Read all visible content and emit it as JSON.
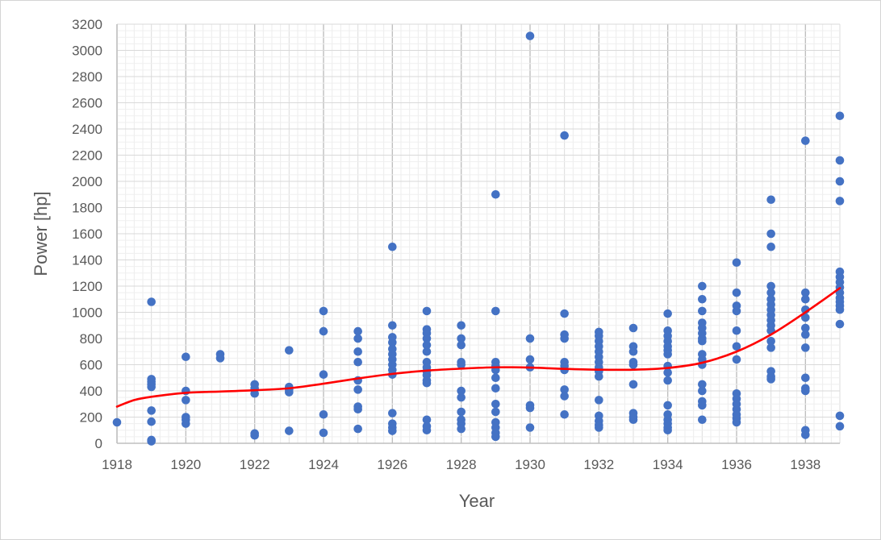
{
  "chart_data": {
    "type": "scatter",
    "title": "",
    "xlabel": "Year",
    "ylabel": "Power [hp]",
    "xlim": [
      1918,
      1939
    ],
    "ylim": [
      0,
      3200
    ],
    "x_ticks": [
      1918,
      1920,
      1922,
      1924,
      1926,
      1928,
      1930,
      1932,
      1934,
      1936,
      1938
    ],
    "y_ticks": [
      0,
      200,
      400,
      600,
      800,
      1000,
      1200,
      1400,
      1600,
      1800,
      2000,
      2200,
      2400,
      2600,
      2800,
      3000,
      3200
    ],
    "grid": true,
    "legend": "none",
    "colors": {
      "points": "#4472c4",
      "trend": "#ff0000",
      "grid": "#d9d9d9"
    },
    "series": [
      {
        "kind": "points",
        "points": [
          [
            1918,
            160
          ],
          [
            1919,
            1080
          ],
          [
            1919,
            490
          ],
          [
            1919,
            470
          ],
          [
            1919,
            450
          ],
          [
            1919,
            430
          ],
          [
            1919,
            250
          ],
          [
            1919,
            165
          ],
          [
            1919,
            25
          ],
          [
            1919,
            15
          ],
          [
            1920,
            660
          ],
          [
            1920,
            400
          ],
          [
            1920,
            330
          ],
          [
            1920,
            200
          ],
          [
            1920,
            180
          ],
          [
            1920,
            150
          ],
          [
            1921,
            680
          ],
          [
            1921,
            650
          ],
          [
            1922,
            450
          ],
          [
            1922,
            420
          ],
          [
            1922,
            380
          ],
          [
            1922,
            75
          ],
          [
            1922,
            60
          ],
          [
            1923,
            710
          ],
          [
            1923,
            430
          ],
          [
            1923,
            410
          ],
          [
            1923,
            390
          ],
          [
            1923,
            95
          ],
          [
            1924,
            1010
          ],
          [
            1924,
            855
          ],
          [
            1924,
            525
          ],
          [
            1924,
            220
          ],
          [
            1924,
            80
          ],
          [
            1925,
            855
          ],
          [
            1925,
            800
          ],
          [
            1925,
            700
          ],
          [
            1925,
            620
          ],
          [
            1925,
            480
          ],
          [
            1925,
            410
          ],
          [
            1925,
            280
          ],
          [
            1925,
            260
          ],
          [
            1925,
            110
          ],
          [
            1926,
            1500
          ],
          [
            1926,
            900
          ],
          [
            1926,
            810
          ],
          [
            1926,
            770
          ],
          [
            1926,
            720
          ],
          [
            1926,
            680
          ],
          [
            1926,
            640
          ],
          [
            1926,
            600
          ],
          [
            1926,
            560
          ],
          [
            1926,
            525
          ],
          [
            1926,
            230
          ],
          [
            1926,
            150
          ],
          [
            1926,
            120
          ],
          [
            1926,
            95
          ],
          [
            1927,
            1010
          ],
          [
            1927,
            870
          ],
          [
            1927,
            840
          ],
          [
            1927,
            800
          ],
          [
            1927,
            750
          ],
          [
            1927,
            700
          ],
          [
            1927,
            620
          ],
          [
            1927,
            580
          ],
          [
            1927,
            550
          ],
          [
            1927,
            520
          ],
          [
            1927,
            480
          ],
          [
            1927,
            460
          ],
          [
            1927,
            180
          ],
          [
            1927,
            130
          ],
          [
            1927,
            100
          ],
          [
            1928,
            900
          ],
          [
            1928,
            800
          ],
          [
            1928,
            750
          ],
          [
            1928,
            620
          ],
          [
            1928,
            600
          ],
          [
            1928,
            400
          ],
          [
            1928,
            350
          ],
          [
            1928,
            240
          ],
          [
            1928,
            180
          ],
          [
            1928,
            150
          ],
          [
            1928,
            110
          ],
          [
            1929,
            1900
          ],
          [
            1929,
            1010
          ],
          [
            1929,
            620
          ],
          [
            1929,
            590
          ],
          [
            1929,
            560
          ],
          [
            1929,
            500
          ],
          [
            1929,
            420
          ],
          [
            1929,
            300
          ],
          [
            1929,
            240
          ],
          [
            1929,
            160
          ],
          [
            1929,
            120
          ],
          [
            1929,
            80
          ],
          [
            1929,
            50
          ],
          [
            1930,
            3110
          ],
          [
            1930,
            800
          ],
          [
            1930,
            640
          ],
          [
            1930,
            580
          ],
          [
            1930,
            290
          ],
          [
            1930,
            270
          ],
          [
            1930,
            120
          ],
          [
            1931,
            2350
          ],
          [
            1931,
            990
          ],
          [
            1931,
            830
          ],
          [
            1931,
            800
          ],
          [
            1931,
            620
          ],
          [
            1931,
            590
          ],
          [
            1931,
            560
          ],
          [
            1931,
            410
          ],
          [
            1931,
            360
          ],
          [
            1931,
            220
          ],
          [
            1932,
            850
          ],
          [
            1932,
            820
          ],
          [
            1932,
            780
          ],
          [
            1932,
            740
          ],
          [
            1932,
            700
          ],
          [
            1932,
            660
          ],
          [
            1932,
            620
          ],
          [
            1932,
            580
          ],
          [
            1932,
            550
          ],
          [
            1932,
            510
          ],
          [
            1932,
            330
          ],
          [
            1932,
            210
          ],
          [
            1932,
            170
          ],
          [
            1932,
            140
          ],
          [
            1932,
            120
          ],
          [
            1933,
            880
          ],
          [
            1933,
            740
          ],
          [
            1933,
            700
          ],
          [
            1933,
            620
          ],
          [
            1933,
            600
          ],
          [
            1933,
            450
          ],
          [
            1933,
            230
          ],
          [
            1933,
            200
          ],
          [
            1933,
            180
          ],
          [
            1934,
            990
          ],
          [
            1934,
            860
          ],
          [
            1934,
            820
          ],
          [
            1934,
            780
          ],
          [
            1934,
            740
          ],
          [
            1934,
            710
          ],
          [
            1934,
            680
          ],
          [
            1934,
            590
          ],
          [
            1934,
            540
          ],
          [
            1934,
            480
          ],
          [
            1934,
            290
          ],
          [
            1934,
            220
          ],
          [
            1934,
            180
          ],
          [
            1934,
            150
          ],
          [
            1934,
            120
          ],
          [
            1934,
            100
          ],
          [
            1935,
            1200
          ],
          [
            1935,
            1100
          ],
          [
            1935,
            1010
          ],
          [
            1935,
            920
          ],
          [
            1935,
            880
          ],
          [
            1935,
            840
          ],
          [
            1935,
            800
          ],
          [
            1935,
            780
          ],
          [
            1935,
            680
          ],
          [
            1935,
            640
          ],
          [
            1935,
            600
          ],
          [
            1935,
            450
          ],
          [
            1935,
            400
          ],
          [
            1935,
            320
          ],
          [
            1935,
            290
          ],
          [
            1935,
            180
          ],
          [
            1936,
            1380
          ],
          [
            1936,
            1150
          ],
          [
            1936,
            1050
          ],
          [
            1936,
            1010
          ],
          [
            1936,
            860
          ],
          [
            1936,
            740
          ],
          [
            1936,
            640
          ],
          [
            1936,
            380
          ],
          [
            1936,
            340
          ],
          [
            1936,
            300
          ],
          [
            1936,
            260
          ],
          [
            1936,
            220
          ],
          [
            1936,
            190
          ],
          [
            1936,
            160
          ],
          [
            1937,
            1860
          ],
          [
            1937,
            1600
          ],
          [
            1937,
            1500
          ],
          [
            1937,
            1200
          ],
          [
            1937,
            1150
          ],
          [
            1937,
            1100
          ],
          [
            1937,
            1060
          ],
          [
            1937,
            1020
          ],
          [
            1937,
            980
          ],
          [
            1937,
            940
          ],
          [
            1937,
            900
          ],
          [
            1937,
            860
          ],
          [
            1937,
            780
          ],
          [
            1937,
            730
          ],
          [
            1937,
            550
          ],
          [
            1937,
            510
          ],
          [
            1937,
            490
          ],
          [
            1938,
            2310
          ],
          [
            1938,
            1150
          ],
          [
            1938,
            1100
          ],
          [
            1938,
            1020
          ],
          [
            1938,
            960
          ],
          [
            1938,
            880
          ],
          [
            1938,
            830
          ],
          [
            1938,
            730
          ],
          [
            1938,
            500
          ],
          [
            1938,
            420
          ],
          [
            1938,
            400
          ],
          [
            1938,
            100
          ],
          [
            1938,
            65
          ],
          [
            1939,
            2500
          ],
          [
            1939,
            2160
          ],
          [
            1939,
            2000
          ],
          [
            1939,
            1850
          ],
          [
            1939,
            1310
          ],
          [
            1939,
            1270
          ],
          [
            1939,
            1230
          ],
          [
            1939,
            1190
          ],
          [
            1939,
            1150
          ],
          [
            1939,
            1110
          ],
          [
            1939,
            1080
          ],
          [
            1939,
            1050
          ],
          [
            1939,
            1020
          ],
          [
            1939,
            910
          ],
          [
            1939,
            210
          ],
          [
            1939,
            130
          ]
        ]
      },
      {
        "kind": "trendline",
        "points": [
          [
            1918,
            280
          ],
          [
            1918.5,
            330
          ],
          [
            1919,
            355
          ],
          [
            1920,
            385
          ],
          [
            1921,
            395
          ],
          [
            1922,
            405
          ],
          [
            1923,
            420
          ],
          [
            1924,
            455
          ],
          [
            1925,
            495
          ],
          [
            1926,
            530
          ],
          [
            1927,
            555
          ],
          [
            1928,
            570
          ],
          [
            1929,
            580
          ],
          [
            1930,
            578
          ],
          [
            1931,
            568
          ],
          [
            1932,
            562
          ],
          [
            1933,
            562
          ],
          [
            1934,
            575
          ],
          [
            1935,
            615
          ],
          [
            1936,
            700
          ],
          [
            1937,
            830
          ],
          [
            1938,
            1000
          ],
          [
            1939,
            1185
          ]
        ]
      }
    ]
  }
}
